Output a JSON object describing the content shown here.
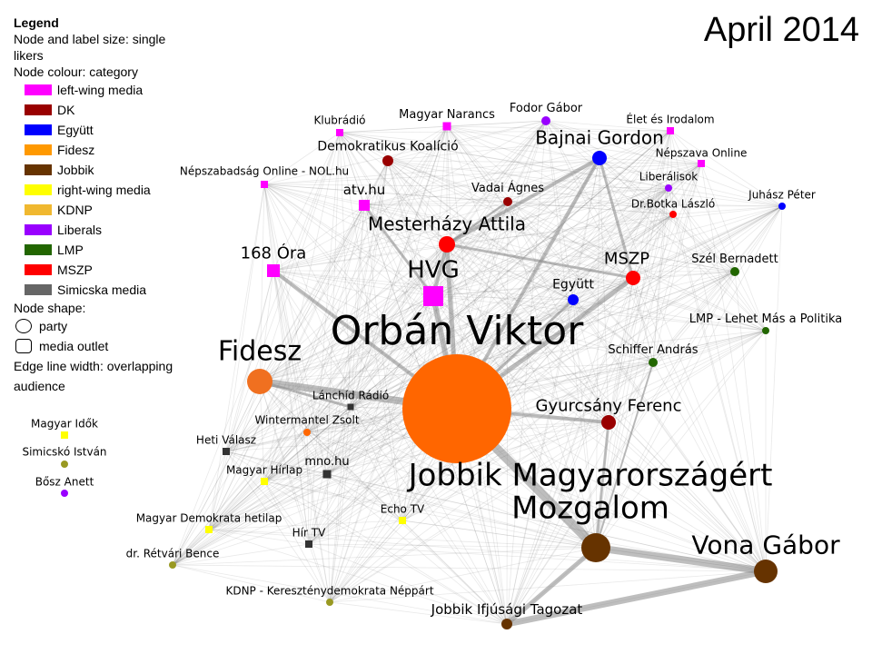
{
  "title": "April 2014",
  "legend": {
    "title": "Legend",
    "size_note": "Node and label size: single likers",
    "colour_heading": "Node colour: category",
    "categories": [
      "left-wing media",
      "DK",
      "Együtt",
      "Fidesz",
      "Jobbik",
      "right-wing media",
      "KDNP",
      "Liberals",
      "LMP",
      "MSZP",
      "Simicska media"
    ],
    "shape_heading": "Node shape:",
    "shapes": [
      "party",
      "media outlet"
    ],
    "edge_note": "Edge line width: overlapping audience"
  },
  "nodes": [
    {
      "label": "Orbán Viktor"
    },
    {
      "label": "Jobbik Magyarországért Mozgalom"
    },
    {
      "label": "Vona Gábor"
    },
    {
      "label": "Jobbik Ifjúsági Tagozat"
    },
    {
      "label": "Fidesz"
    },
    {
      "label": "HVG"
    },
    {
      "label": "Mesterházy Attila"
    },
    {
      "label": "MSZP"
    },
    {
      "label": "Együtt"
    },
    {
      "label": "Bajnai Gordon"
    },
    {
      "label": "Gyurcsány Ferenc"
    },
    {
      "label": "Demokratikus Koalíció"
    },
    {
      "label": "Vadai Ágnes"
    },
    {
      "label": "168 Óra"
    },
    {
      "label": "atv.hu"
    },
    {
      "label": "Magyar Narancs"
    },
    {
      "label": "Klubrádió"
    },
    {
      "label": "Népszabadság Online - NOL.hu"
    },
    {
      "label": "Fodor Gábor"
    },
    {
      "label": "Élet és Irodalom"
    },
    {
      "label": "Népszava Online"
    },
    {
      "label": "Liberálisok"
    },
    {
      "label": "Dr.Botka László"
    },
    {
      "label": "Juhász Péter"
    },
    {
      "label": "Szél Bernadett"
    },
    {
      "label": "LMP - Lehet Más a Politika"
    },
    {
      "label": "Schiffer András"
    },
    {
      "label": "Lánchíd Rádió"
    },
    {
      "label": "Wintermantel Zsolt"
    },
    {
      "label": "Heti Válasz"
    },
    {
      "label": "mno.hu"
    },
    {
      "label": "Magyar Hírlap"
    },
    {
      "label": "Magyar Demokrata hetilap"
    },
    {
      "label": "Echo TV"
    },
    {
      "label": "Hír TV"
    },
    {
      "label": "dr. Rétvári Bence"
    },
    {
      "label": "KDNP - Kereszténydemokrata Néppárt"
    },
    {
      "label": "Magyar Idők"
    },
    {
      "label": "Simicskó István"
    },
    {
      "label": "Bősz Anett"
    }
  ]
}
